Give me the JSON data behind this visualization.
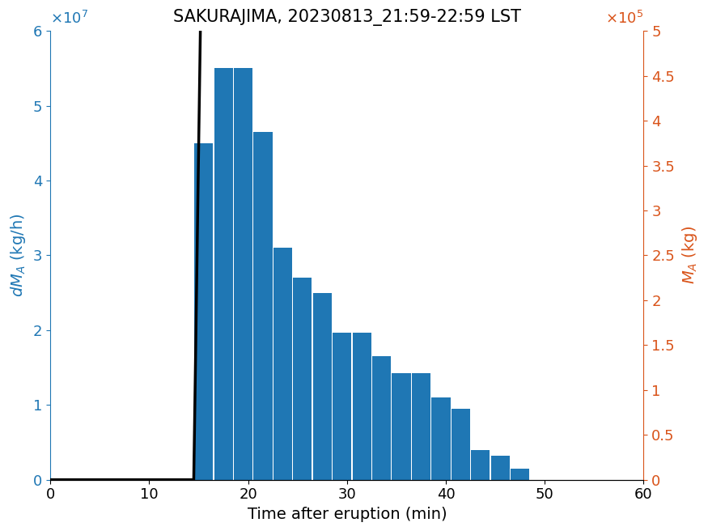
{
  "title": "SAKURAJIMA, 20230813_21:59-22:59 LST",
  "xlabel": "Time after eruption (min)",
  "ylabel_left": "dM_A (kg/h)",
  "ylabel_right": "M_A (kg)",
  "bar_centers": [
    15.5,
    17.5,
    19.5,
    21.5,
    23.5,
    25.5,
    27.5,
    29.5,
    31.5,
    33.5,
    35.5,
    37.5,
    39.5,
    41.5,
    43.5,
    45.5,
    47.5
  ],
  "bar_heights": [
    45000000.0,
    55000000.0,
    55000000.0,
    46500000.0,
    31000000.0,
    27000000.0,
    25000000.0,
    19700000.0,
    19700000.0,
    16500000.0,
    14200000.0,
    14200000.0,
    11000000.0,
    9500000.0,
    4000000.0,
    3200000.0,
    1500000.0
  ],
  "bar_width": 2.0,
  "bar_color": "#1f77b4",
  "line_color": "black",
  "xlim": [
    0,
    60
  ],
  "ylim_left": [
    0,
    60000000.0
  ],
  "ylim_right": [
    0,
    500000.0
  ],
  "xticks": [
    0,
    10,
    20,
    30,
    40,
    50,
    60
  ],
  "yticks_left": [
    0,
    10000000.0,
    20000000.0,
    30000000.0,
    40000000.0,
    50000000.0,
    60000000.0
  ],
  "yticks_right": [
    0,
    50000.0,
    100000.0,
    150000.0,
    200000.0,
    250000.0,
    300000.0,
    350000.0,
    400000.0,
    450000.0,
    500000.0
  ],
  "title_fontsize": 15,
  "label_fontsize": 14,
  "tick_fontsize": 13,
  "line_lw": 2.5
}
